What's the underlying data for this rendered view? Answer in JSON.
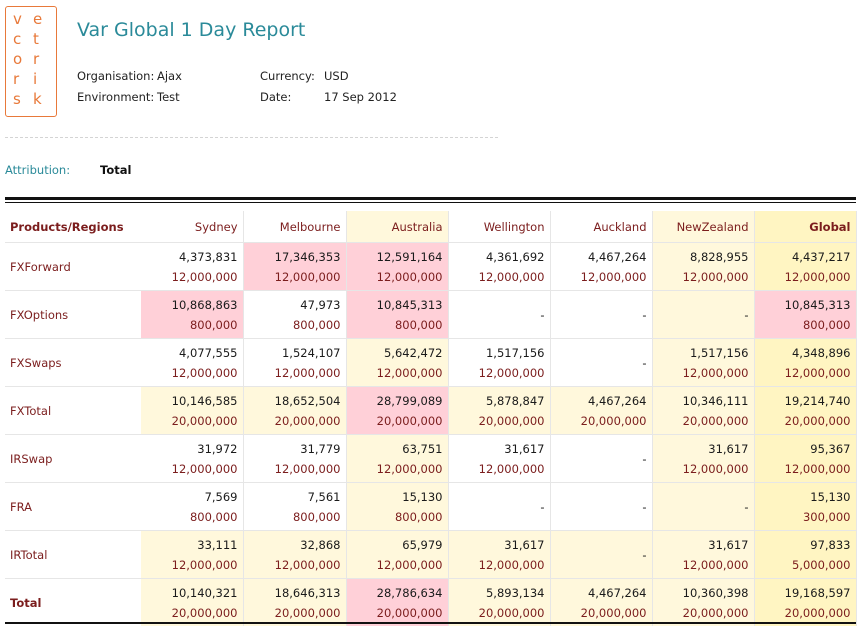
{
  "logo": {
    "letters": [
      "v",
      "e",
      "c",
      "t",
      "o",
      "r",
      "r",
      "i",
      "s",
      "k"
    ]
  },
  "report": {
    "title": "Var Global 1 Day Report",
    "organisation_label": "Organisation:",
    "organisation": "Ajax",
    "environment_label": "Environment:",
    "environment": "Test",
    "currency_label": "Currency:",
    "currency": "USD",
    "date_label": "Date:",
    "date": "17 Sep 2012",
    "attribution_label": "Attribution:",
    "attribution": "Total"
  },
  "table": {
    "row_header": "Products/Regions",
    "columns": [
      "Sydney",
      "Melbourne",
      "Australia",
      "Wellington",
      "Auckland",
      "NewZealand",
      "Global"
    ],
    "rows": [
      {
        "product": "FXForward",
        "cells": [
          [
            "4,373,831",
            "12,000,000"
          ],
          [
            "17,346,353",
            "12,000,000"
          ],
          [
            "12,591,164",
            "12,000,000"
          ],
          [
            "4,361,692",
            "12,000,000"
          ],
          [
            "4,467,264",
            "12,000,000"
          ],
          [
            "8,828,955",
            "12,000,000"
          ],
          [
            "4,437,217",
            "12,000,000"
          ]
        ]
      },
      {
        "product": "FXOptions",
        "cells": [
          [
            "10,868,863",
            "800,000"
          ],
          [
            "47,973",
            "800,000"
          ],
          [
            "10,845,313",
            "800,000"
          ],
          [
            "-",
            ""
          ],
          [
            "-",
            ""
          ],
          [
            "-",
            ""
          ],
          [
            "10,845,313",
            "800,000"
          ]
        ]
      },
      {
        "product": "FXSwaps",
        "cells": [
          [
            "4,077,555",
            "12,000,000"
          ],
          [
            "1,524,107",
            "12,000,000"
          ],
          [
            "5,642,472",
            "12,000,000"
          ],
          [
            "1,517,156",
            "12,000,000"
          ],
          [
            "-",
            ""
          ],
          [
            "1,517,156",
            "12,000,000"
          ],
          [
            "4,348,896",
            "12,000,000"
          ]
        ]
      },
      {
        "product": "FXTotal",
        "cells": [
          [
            "10,146,585",
            "20,000,000"
          ],
          [
            "18,652,504",
            "20,000,000"
          ],
          [
            "28,799,089",
            "20,000,000"
          ],
          [
            "5,878,847",
            "20,000,000"
          ],
          [
            "4,467,264",
            "20,000,000"
          ],
          [
            "10,346,111",
            "20,000,000"
          ],
          [
            "19,214,740",
            "20,000,000"
          ]
        ]
      },
      {
        "product": "IRSwap",
        "cells": [
          [
            "31,972",
            "12,000,000"
          ],
          [
            "31,779",
            "12,000,000"
          ],
          [
            "63,751",
            "12,000,000"
          ],
          [
            "31,617",
            "12,000,000"
          ],
          [
            "-",
            ""
          ],
          [
            "31,617",
            "12,000,000"
          ],
          [
            "95,367",
            "12,000,000"
          ]
        ]
      },
      {
        "product": "FRA",
        "cells": [
          [
            "7,569",
            "800,000"
          ],
          [
            "7,561",
            "800,000"
          ],
          [
            "15,130",
            "800,000"
          ],
          [
            "-",
            ""
          ],
          [
            "-",
            ""
          ],
          [
            "-",
            ""
          ],
          [
            "15,130",
            "300,000"
          ]
        ]
      },
      {
        "product": "IRTotal",
        "cells": [
          [
            "33,111",
            "12,000,000"
          ],
          [
            "32,868",
            "12,000,000"
          ],
          [
            "65,979",
            "12,000,000"
          ],
          [
            "31,617",
            "12,000,000"
          ],
          [
            "-",
            ""
          ],
          [
            "31,617",
            "12,000,000"
          ],
          [
            "97,833",
            "5,000,000"
          ]
        ]
      },
      {
        "product": "Total",
        "cells": [
          [
            "10,140,321",
            "20,000,000"
          ],
          [
            "18,646,313",
            "20,000,000"
          ],
          [
            "28,786,634",
            "20,000,000"
          ],
          [
            "5,893,134",
            "20,000,000"
          ],
          [
            "4,467,264",
            "20,000,000"
          ],
          [
            "10,360,398",
            "20,000,000"
          ],
          [
            "19,168,597",
            "20,000,000"
          ]
        ]
      }
    ]
  },
  "colors": {
    "accent": "#2a8a99",
    "logo": "#e8793a",
    "breach": "#ffd0d8",
    "subtotal": "#fff8dc",
    "global": "#fff5c2",
    "product_text": "#7b1d1d"
  }
}
